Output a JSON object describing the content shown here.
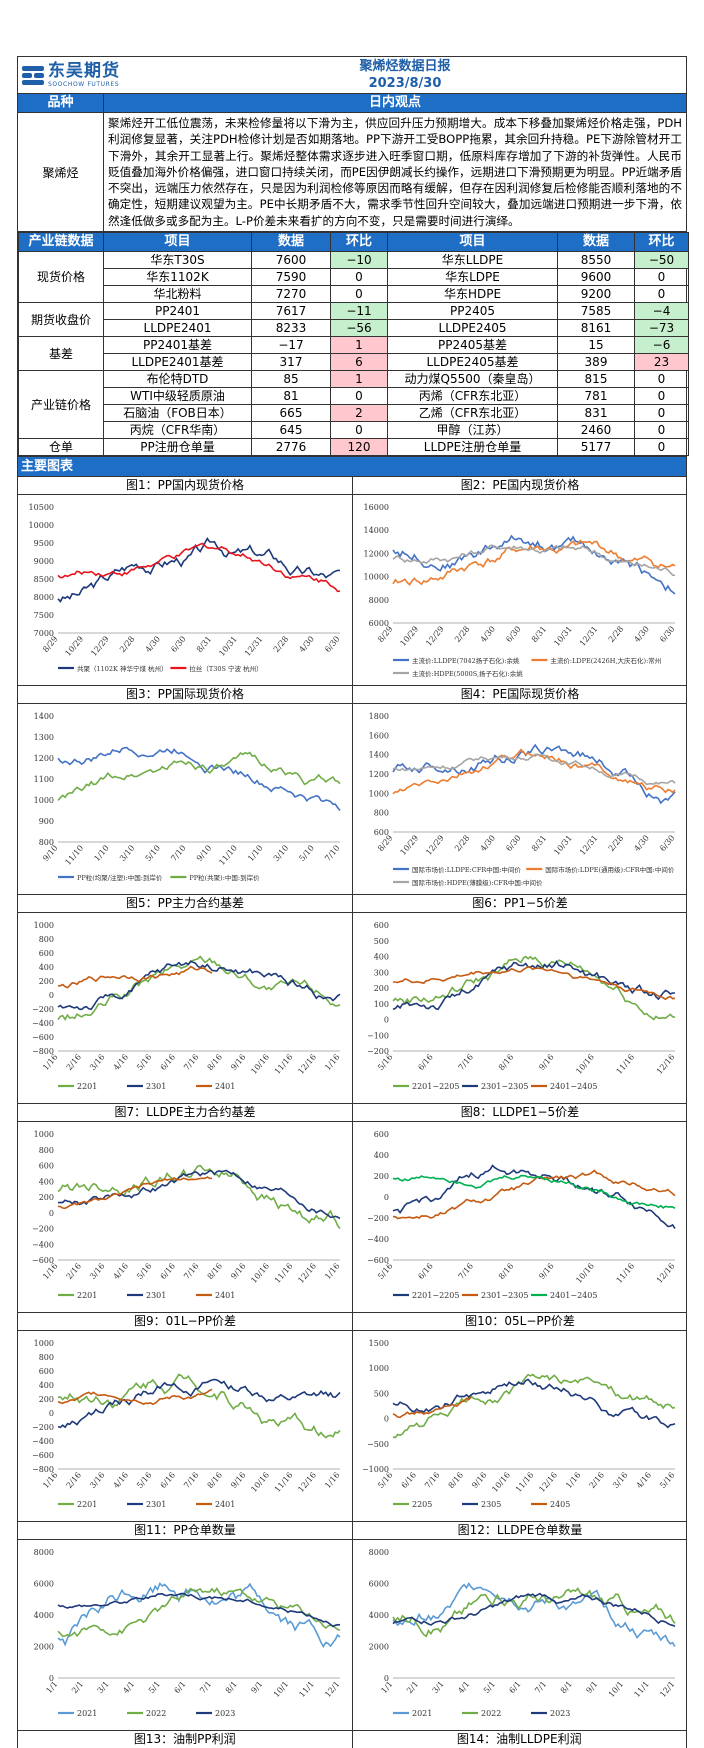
{
  "header": {
    "company_cn": "东吴期货",
    "company_en": "SOOCHOW FUTURES",
    "title": "聚烯烃数据日报",
    "date": "2023/8/30"
  },
  "view": {
    "col1": "品种",
    "col2": "日内观点",
    "product": "聚烯烃",
    "text": "聚烯烃开工低位震荡，未来检修量将以下滑为主，供应回升压力预期增大。成本下移叠加聚烯烃价格走强，PDH利润修复显著，关注PDH检修计划是否如期落地。PP下游开工受BOPP拖累，其余回升持稳。PE下游除管材开工下滑外，其余开工显著上行。聚烯烃整体需求逐步进入旺季窗口期，低原料库存增加了下游的补货弹性。人民币贬值叠加海外价格偏强，进口窗口持续关闭，而PE因伊朗减长约操作，远期进口下滑预期更为明显。PP近端矛盾不突出，远端压力依然存在，只是因为利润检修等原因而略有缓解，但存在因利润修复后检修能否顺利落地的不确定性，短期建议观望为主。PE中长期矛盾不大，需求季节性回升空间较大，叠加远端进口预期进一步下滑，依然逢低做多或多配为主。L-P价差未来看扩的方向不变，只是需要时间进行演绎。"
  },
  "table": {
    "headers": [
      "产业链数据",
      "项目",
      "数据",
      "环比",
      "项目",
      "数据",
      "环比"
    ],
    "groups": [
      {
        "name": "现货价格",
        "rows": [
          [
            "华东T30S",
            "7600",
            "−10",
            "华东LLDPE",
            "8550",
            "−50"
          ],
          [
            "华东1102K",
            "7590",
            "0",
            "华东LDPE",
            "9600",
            "0"
          ],
          [
            "华北粉料",
            "7270",
            "0",
            "华东HDPE",
            "9200",
            "0"
          ]
        ]
      },
      {
        "name": "期货收盘价",
        "rows": [
          [
            "PP2401",
            "7617",
            "−11",
            "PP2405",
            "7585",
            "−4"
          ],
          [
            "LLDPE2401",
            "8233",
            "−56",
            "LLDPE2405",
            "8161",
            "−73"
          ]
        ]
      },
      {
        "name": "基差",
        "rows": [
          [
            "PP2401基差",
            "−17",
            "1",
            "PP2405基差",
            "15",
            "−6"
          ],
          [
            "LLDPE2401基差",
            "317",
            "6",
            "LLDPE2405基差",
            "389",
            "23"
          ]
        ]
      },
      {
        "name": "产业链价格",
        "rows": [
          [
            "布伦特DTD",
            "85",
            "1",
            "动力煤Q5500（秦皇岛）",
            "815",
            "0"
          ],
          [
            "WTI中级轻质原油",
            "81",
            "0",
            "丙烯（CFR东北亚）",
            "781",
            "0"
          ],
          [
            "石脑油（FOB日本）",
            "665",
            "2",
            "乙烯（CFR东北亚）",
            "831",
            "0"
          ],
          [
            "丙烷（CFR华南）",
            "645",
            "0",
            "甲醇（江苏）",
            "2460",
            "0"
          ]
        ]
      },
      {
        "name": "仓单",
        "rows": [
          [
            "PP注册仓单量",
            "2776",
            "120",
            "LLDPE注册仓单量",
            "5177",
            "0"
          ]
        ]
      }
    ]
  },
  "section_title": "主要图表",
  "charts": [
    {
      "title": "图1：PP国内现货价格",
      "yticks": [
        "10500",
        "10000",
        "9500",
        "9000",
        "8500",
        "8000",
        "7500",
        "7000"
      ],
      "xticks": [
        "8/29",
        "10/29",
        "12/29",
        "2/28",
        "4/30",
        "6/30",
        "8/31",
        "10/31",
        "12/31",
        "2/28",
        "4/30",
        "6/30"
      ],
      "legend": [
        "共聚（1102K 神华宁煤 杭州）",
        "拉丝（T30S 宁波 杭州）"
      ],
      "colors": [
        "#1f3a7a",
        "#e8141c"
      ]
    },
    {
      "title": "图2：PE国内现货价格",
      "yticks": [
        "16000",
        "14000",
        "12000",
        "10000",
        "8000",
        "6000"
      ],
      "xticks": [
        "8/29",
        "10/29",
        "12/29",
        "2/28",
        "4/30",
        "6/30",
        "8/31",
        "10/31",
        "12/31",
        "2/28",
        "4/30",
        "6/30"
      ],
      "legend": [
        "主流价:LLDPE(7042扬子石化):余姚",
        "主流价:LDPE(2426H,大庆石化):常州",
        "主流价:HDPE(5000S,扬子石化):余姚"
      ],
      "colors": [
        "#4472c4",
        "#ed7d31",
        "#a5a5a5"
      ]
    },
    {
      "title": "图3：PP国际现货价格",
      "yticks": [
        "1400",
        "1300",
        "1200",
        "1100",
        "1000",
        "900",
        "800"
      ],
      "xticks": [
        "9/10",
        "11/10",
        "1/10",
        "3/10",
        "5/10",
        "7/10",
        "9/10",
        "11/10",
        "1/10",
        "3/10",
        "5/10",
        "7/10"
      ],
      "legend": [
        "PP粒(均聚/注塑):中国:到岸价",
        "PP粒(共聚):中国:到岸价"
      ],
      "colors": [
        "#4472c4",
        "#70ad47"
      ]
    },
    {
      "title": "图4：PE国际现货价格",
      "yticks": [
        "1800",
        "1600",
        "1400",
        "1200",
        "1000",
        "800",
        "600"
      ],
      "xticks": [
        "8/29",
        "10/29",
        "12/29",
        "2/28",
        "4/30",
        "6/30",
        "8/31",
        "10/31",
        "12/31",
        "2/28",
        "4/30",
        "6/30"
      ],
      "legend": [
        "国际市场价:LLDPE:CFR中国:中间价",
        "国际市场价:LDPE(通用级):CFR中国:中间价",
        "国际市场价:HDPE(薄膜级):CFR中国:中间价"
      ],
      "colors": [
        "#4472c4",
        "#ed7d31",
        "#a5a5a5"
      ]
    },
    {
      "title": "图5：PP主力合约基差",
      "yticks": [
        "1000",
        "800",
        "600",
        "400",
        "200",
        "0",
        "−200",
        "−400",
        "−600",
        "−800"
      ],
      "xticks": [
        "1/16",
        "2/16",
        "3/16",
        "4/16",
        "5/16",
        "6/16",
        "7/16",
        "8/16",
        "9/16",
        "10/16",
        "11/16",
        "12/16",
        "1/16"
      ],
      "legend": [
        "2201",
        "2301",
        "2401"
      ],
      "colors": [
        "#70ad47",
        "#1f3a7a",
        "#c55a11"
      ]
    },
    {
      "title": "图6：PP1−5价差",
      "yticks": [
        "600",
        "500",
        "400",
        "300",
        "200",
        "100",
        "0",
        "−100",
        "−200"
      ],
      "xticks": [
        "5/16",
        "6/16",
        "7/16",
        "8/16",
        "9/16",
        "10/16",
        "11/16",
        "12/16"
      ],
      "legend": [
        "2201−2205",
        "2301−2305",
        "2401−2405"
      ],
      "colors": [
        "#70ad47",
        "#1f3a7a",
        "#c55a11"
      ]
    },
    {
      "title": "图7：LLDPE主力合约基差",
      "yticks": [
        "1000",
        "800",
        "600",
        "400",
        "200",
        "0",
        "−200",
        "−400",
        "−600"
      ],
      "xticks": [
        "1/16",
        "2/16",
        "3/16",
        "4/16",
        "5/16",
        "6/16",
        "7/16",
        "8/16",
        "9/16",
        "10/16",
        "11/16",
        "12/16",
        "1/16"
      ],
      "legend": [
        "2201",
        "2301",
        "2401"
      ],
      "colors": [
        "#70ad47",
        "#1f3a7a",
        "#c55a11"
      ]
    },
    {
      "title": "图8：LLDPE1−5价差",
      "yticks": [
        "600",
        "400",
        "200",
        "0",
        "−200",
        "−400",
        "−600"
      ],
      "xticks": [
        "5/16",
        "6/16",
        "7/16",
        "8/16",
        "9/16",
        "10/16",
        "11/16",
        "12/16"
      ],
      "legend": [
        "2201−2205",
        "2301−2305",
        "2401−2405"
      ],
      "colors": [
        "#1f3a7a",
        "#c55a11",
        "#00b050"
      ]
    },
    {
      "title": "图9：01L−PP价差",
      "yticks": [
        "1000",
        "800",
        "600",
        "400",
        "200",
        "0",
        "−200",
        "−400",
        "−600",
        "−800"
      ],
      "xticks": [
        "1/16",
        "2/16",
        "3/16",
        "4/16",
        "5/16",
        "6/16",
        "7/16",
        "8/16",
        "9/16",
        "10/16",
        "11/16",
        "12/16",
        "1/16"
      ],
      "legend": [
        "2201",
        "2301",
        "2401"
      ],
      "colors": [
        "#70ad47",
        "#1f3a7a",
        "#c55a11"
      ]
    },
    {
      "title": "图10：05L−PP价差",
      "yticks": [
        "1500",
        "1000",
        "500",
        "0",
        "−500",
        "−1000"
      ],
      "xticks": [
        "5/16",
        "6/16",
        "7/16",
        "8/16",
        "9/16",
        "10/16",
        "11/16",
        "12/16",
        "1/16",
        "2/16",
        "3/16",
        "4/16",
        "5/16"
      ],
      "legend": [
        "2205",
        "2305",
        "2405"
      ],
      "colors": [
        "#70ad47",
        "#1f3a7a",
        "#c55a11"
      ]
    },
    {
      "title": "图11：PP仓单数量",
      "yticks": [
        "8000",
        "6000",
        "4000",
        "2000",
        "0"
      ],
      "xticks": [
        "1/1",
        "2/1",
        "3/1",
        "4/1",
        "5/1",
        "6/1",
        "7/1",
        "8/1",
        "9/1",
        "10/1",
        "11/1",
        "12/1"
      ],
      "legend": [
        "2021",
        "2022",
        "2023"
      ],
      "colors": [
        "#5b9bd5",
        "#70ad47",
        "#1f3a7a"
      ]
    },
    {
      "title": "图12：LLDPE仓单数量",
      "yticks": [
        "8000",
        "6000",
        "4000",
        "2000",
        "0"
      ],
      "xticks": [
        "1/1",
        "2/1",
        "3/1",
        "4/1",
        "5/1",
        "6/1",
        "7/1",
        "8/1",
        "9/1",
        "10/1",
        "11/1",
        "12/1"
      ],
      "legend": [
        "2021",
        "2022",
        "2023"
      ],
      "colors": [
        "#5b9bd5",
        "#70ad47",
        "#1f3a7a"
      ]
    }
  ],
  "footer_titles": [
    "图13：油制PP利润",
    "图14：油制LLDPE利润"
  ]
}
